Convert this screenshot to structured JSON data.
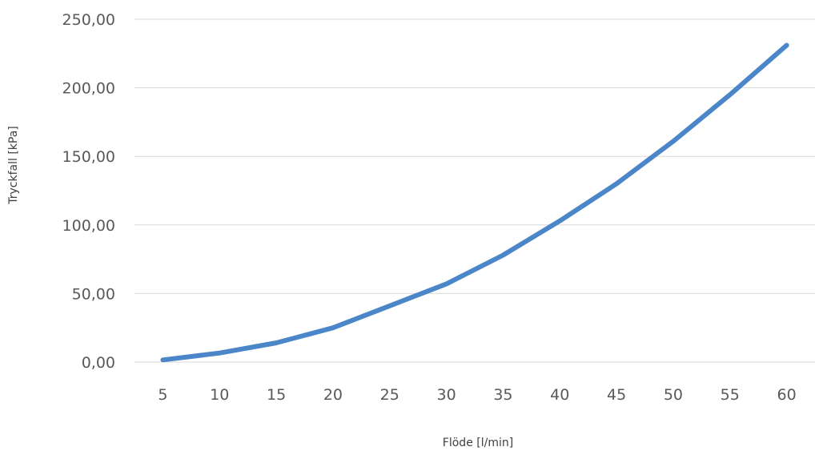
{
  "chart_data": {
    "type": "line",
    "title": "",
    "xlabel": "Flöde [l/min]",
    "ylabel": "Tryckfall [kPa]",
    "categories": [
      "5",
      "10",
      "15",
      "20",
      "25",
      "30",
      "35",
      "40",
      "45",
      "50",
      "55",
      "60"
    ],
    "series": [
      {
        "values": [
          1.6,
          6.6,
          14.0,
          25.0,
          41.0,
          57.0,
          78.0,
          103.0,
          130.0,
          161.0,
          195.0,
          231.0
        ]
      }
    ],
    "ylim": [
      0,
      250
    ],
    "yticks": [
      "0,00",
      "50,00",
      "100,00",
      "150,00",
      "200,00",
      "250,00"
    ],
    "ytick_values": [
      0,
      50,
      100,
      150,
      200,
      250
    ],
    "grid": true,
    "legend": "none",
    "colors": {
      "line": "#4a86c8",
      "grid": "#d9d9d9"
    }
  }
}
